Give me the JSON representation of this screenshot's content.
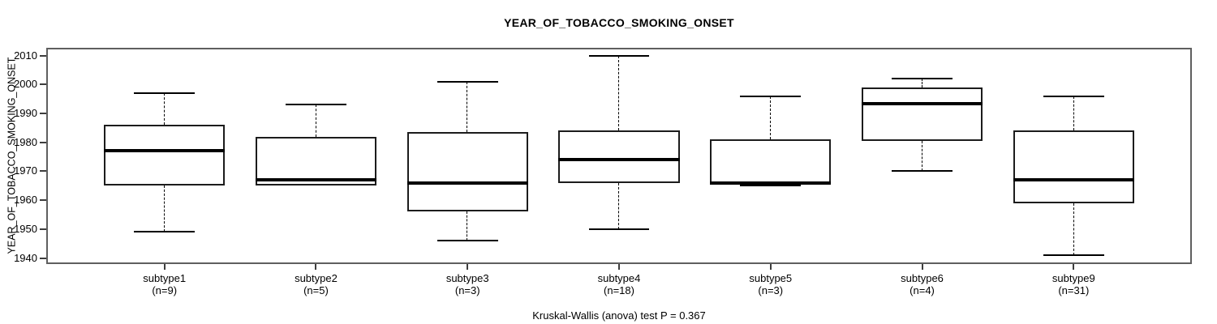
{
  "colors": {
    "line": "#000000",
    "frame": "#5f5f5f",
    "background": "#ffffff"
  },
  "chart_data": {
    "type": "boxplot",
    "title": "YEAR_OF_TOBACCO_SMOKING_ONSET",
    "xlabel": "",
    "ylabel": "YEAR_OF_TOBACCO_SMOKING_ONSET",
    "ylim": [
      1937.9,
      2012.7
    ],
    "yticks": [
      1940,
      1950,
      1960,
      1970,
      1980,
      1990,
      2000,
      2010
    ],
    "grid": "off",
    "legend": "none",
    "annotation": "Kruskal-Wallis (anova) test P = 0.367",
    "groups": [
      {
        "label": "subtype1",
        "n_label": "(n=9)",
        "n": 9,
        "min": 1949,
        "q1": 1965,
        "median": 1977,
        "q3": 1986,
        "max": 1997
      },
      {
        "label": "subtype2",
        "n_label": "(n=5)",
        "n": 5,
        "min": 1965,
        "q1": 1965,
        "median": 1967,
        "q3": 1982,
        "max": 1993
      },
      {
        "label": "subtype3",
        "n_label": "(n=3)",
        "n": 3,
        "min": 1946,
        "q1": 1956,
        "median": 1966,
        "q3": 1983.5,
        "max": 2001
      },
      {
        "label": "subtype4",
        "n_label": "(n=18)",
        "n": 18,
        "min": 1950,
        "q1": 1966,
        "median": 1974,
        "q3": 1984,
        "max": 2010
      },
      {
        "label": "subtype5",
        "n_label": "(n=3)",
        "n": 3,
        "min": 1965,
        "q1": 1965.5,
        "median": 1966,
        "q3": 1981,
        "max": 1996
      },
      {
        "label": "subtype6",
        "n_label": "(n=4)",
        "n": 4,
        "min": 1970,
        "q1": 1980.5,
        "median": 1993.5,
        "q3": 1999,
        "max": 2002
      },
      {
        "label": "subtype9",
        "n_label": "(n=31)",
        "n": 31,
        "min": 1941,
        "q1": 1959,
        "median": 1967,
        "q3": 1984,
        "max": 1996
      }
    ]
  }
}
